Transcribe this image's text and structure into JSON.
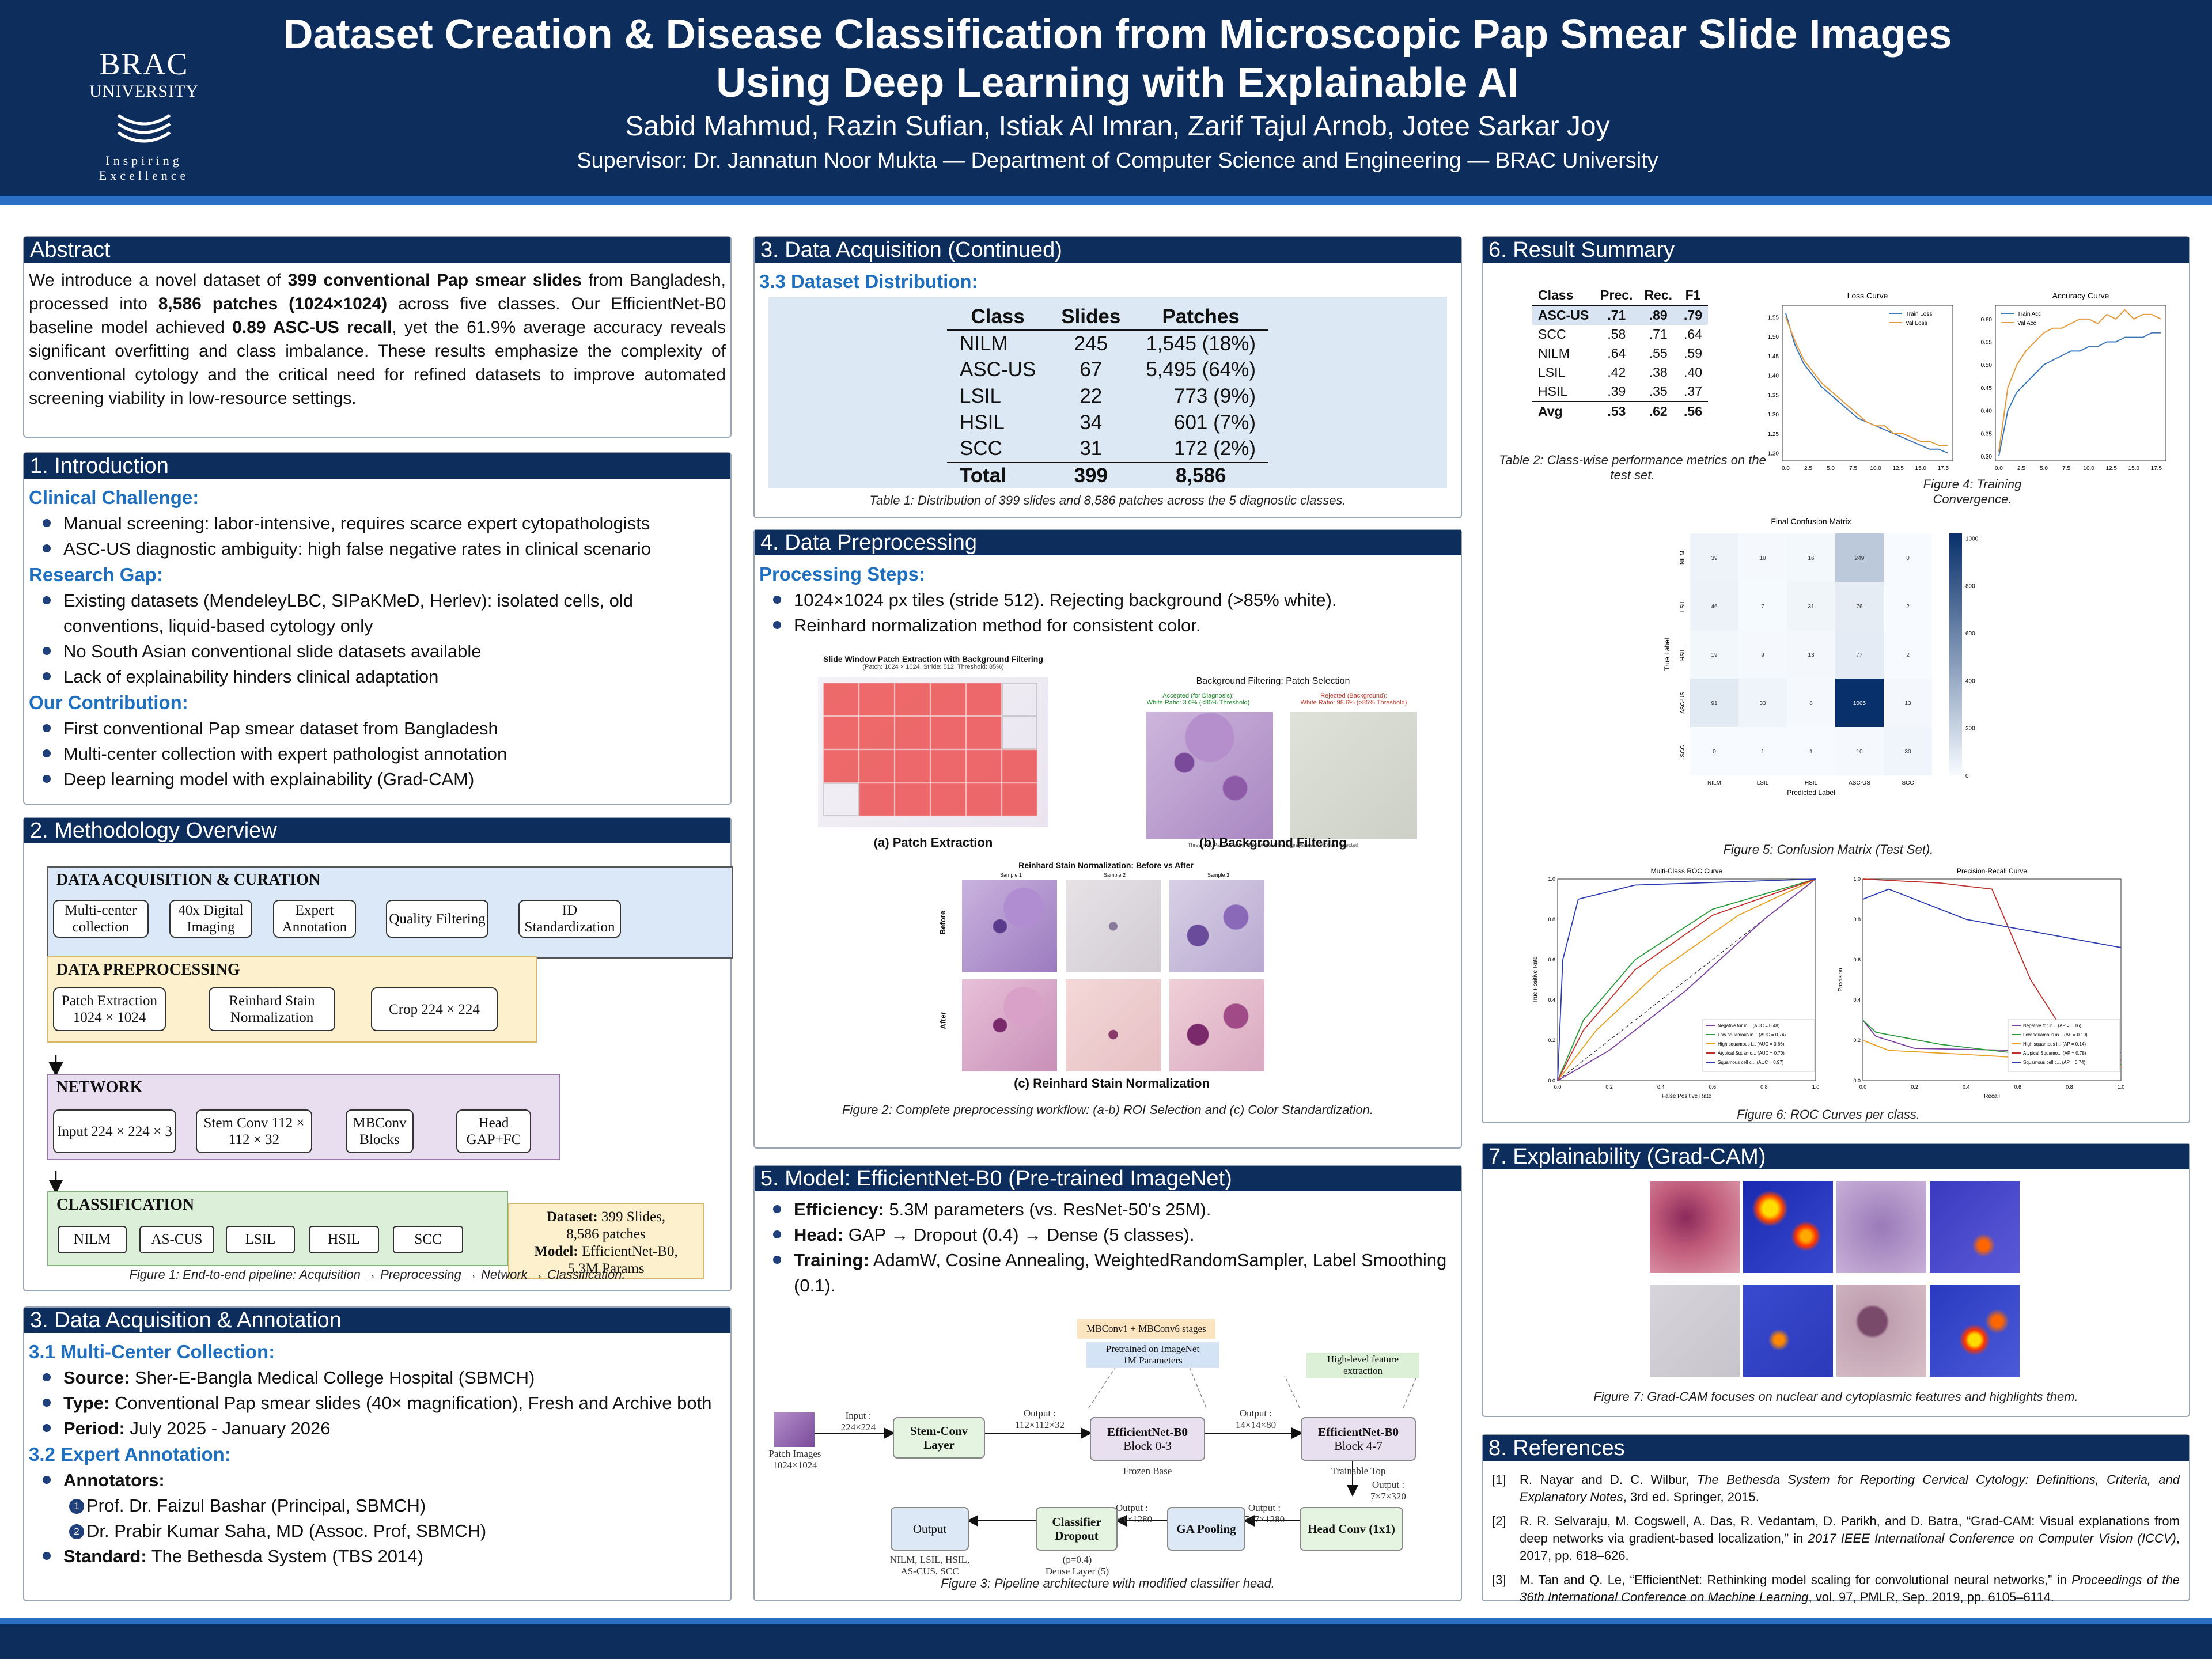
{
  "header": {
    "logo_line1": "BRAC",
    "logo_line2": "UNIVERSITY",
    "logo_tag": "Inspiring Excellence",
    "title_line1": "Dataset Creation & Disease Classification from Microscopic Pap Smear Slide Images",
    "title_line2": "Using Deep Learning with Explainable AI",
    "authors": "Sabid Mahmud, Razin Sufian, Istiak Al Imran, Zarif Tajul Arnob, Jotee Sarkar Joy",
    "supervisor": "Supervisor: Dr. Jannatun Noor Mukta — Department of Computer Science and Engineering — BRAC University"
  },
  "abstract": {
    "title": "Abstract",
    "t1": "We introduce a novel dataset of ",
    "b1": "399 conventional Pap smear slides",
    "t2": " from Bangladesh, processed into ",
    "b2": "8,586 patches (1024×1024)",
    "t3": " across five classes. Our EfficientNet-B0 baseline model achieved ",
    "b3": "0.89 ASC-US recall",
    "t4": ", yet the 61.9% average accuracy reveals significant overfitting and class imbalance. These results emphasize the complexity of conventional cytology and the critical need for refined datasets to improve automated screening viability in low-resource settings."
  },
  "intro": {
    "title": "1. Introduction",
    "h1": "Clinical Challenge:",
    "c1": "Manual screening: labor-intensive, requires scarce expert cytopathologists",
    "c2": "ASC-US diagnostic ambiguity: high false negative rates in clinical scenario",
    "h2": "Research Gap:",
    "g1": "Existing datasets (MendeleyLBC, SIPaKMeD, Herlev): isolated cells, old conventions, liquid-based cytology only",
    "g2": "No South Asian conventional slide datasets available",
    "g3": "Lack of explainability hinders clinical adaptation",
    "h3": "Our Contribution:",
    "o1": "First conventional Pap smear dataset from Bangladesh",
    "o2": "Multi-center collection with expert pathologist annotation",
    "o3": "Deep learning model with explainability (Grad-CAM)"
  },
  "method": {
    "title": "2. Methodology Overview",
    "acq": "DATA ACQUISITION & CURATION",
    "a1": "Multi-center collection",
    "a2": "40x Digital Imaging",
    "a3": "Expert Annotation",
    "a4": "Quality Filtering",
    "a5": "ID Standardization",
    "pre": "DATA PREPROCESSING",
    "p1": "Patch Extraction 1024 × 1024",
    "p2": "Reinhard Stain Normalization",
    "p3": "Crop 224 × 224",
    "net": "NETWORK",
    "n1": "Input 224 × 224 × 3",
    "n2": "Stem Conv 112 × 112 × 32",
    "n3": "MBConv Blocks",
    "n4": "Head GAP+FC",
    "cls": "CLASSIFICATION",
    "k1": "NILM",
    "k2": "AS-CUS",
    "k3": "LSIL",
    "k4": "HSIL",
    "k5": "SCC",
    "info_l1": "Dataset:",
    "info_v1": " 399 Slides,",
    "info_v1b": "8,586 patches",
    "info_l2": "Model:",
    "info_v2": " EfficientNet-B0,",
    "info_v2b": "5.3M Params",
    "caption": "Figure 1: End-to-end pipeline: Acquisition → Preprocessing → Network → Classification."
  },
  "acq": {
    "title": "3. Data Acquisition & Annotation",
    "h1": "3.1 Multi-Center Collection:",
    "l1": "Source:",
    "v1": " Sher-E-Bangla Medical College Hospital (SBMCH)",
    "l2": "Type:",
    "v2": " Conventional Pap smear slides (40× magnification), Fresh and Archive both",
    "l3": "Period:",
    "v3": " July 2025 - January 2026",
    "h2": "3.2 Expert Annotation:",
    "l4": "Annotators:",
    "a1": "Prof. Dr. Faizul Bashar (Principal, SBMCH)",
    "a2": "Dr. Prabir Kumar Saha, MD (Assoc. Prof, SBMCH)",
    "l5": "Standard:",
    "v5": " The Bethesda System (TBS 2014)"
  },
  "acq2": {
    "title": "3. Data Acquisition (Continued)",
    "h1": "3.3 Dataset Distribution:",
    "caption": "Table 1: Distribution of 399 slides and 8,586 patches across the 5 diagnostic classes.",
    "headers": [
      "Class",
      "Slides",
      "Patches"
    ],
    "rows": [
      [
        "NILM",
        "245",
        "1,545 (18%)"
      ],
      [
        "ASC-US",
        "67",
        "5,495 (64%)"
      ],
      [
        "LSIL",
        "22",
        "773 (9%)"
      ],
      [
        "HSIL",
        "34",
        "601 (7%)"
      ],
      [
        "SCC",
        "31",
        "172 (2%)"
      ]
    ],
    "total": [
      "Total",
      "399",
      "8,586"
    ]
  },
  "prep": {
    "title": "4. Data Preprocessing",
    "h1": "Processing Steps:",
    "s1": "1024×1024 px tiles (stride 512). Rejecting background (>85% white).",
    "s2": "Reinhard normalization method for consistent color.",
    "fa_title": "Slide Window Patch Extraction with Background Filtering",
    "fa_sub": "(Patch: 1024 × 1024, Stride: 512, Threshold: 85%)",
    "fa": "(a) Patch Extraction",
    "fb_title": "Background Filtering: Patch Selection",
    "fb_acc": "Accepted (for Diagnosis):",
    "fb_acc2": "White Ratio: 3.0% (<85% Threshold)",
    "fb_rej": "Rejected (Background):",
    "fb_rej2": "White Ratio: 98.6% (>85% Threshold)",
    "fb_note": "Threshold: Patches with >85% White Pixels (grayscale > 200) are rejected",
    "fb": "(b) Background Filtering",
    "fc_title": "Reinhard Stain Normalization: Before vs After",
    "fc_s1": "Sample 1",
    "fc_s2": "Sample 2",
    "fc_s3": "Sample 3",
    "fc_before": "Before",
    "fc_after": "After",
    "fc": "(c) Reinhard Stain Normalization",
    "caption": "Figure 2: Complete preprocessing workflow: (a-b) ROI Selection and (c) Color Standardization."
  },
  "model": {
    "title": "5. Model: EfficientNet-B0 (Pre-trained ImageNet)",
    "l1": "Efficiency:",
    "v1": " 5.3M parameters (vs. ResNet-50's 25M).",
    "l2": "Head:",
    "v2": " GAP → Dropout (0.4) → Dense (5 classes).",
    "l3": "Training:",
    "v3": " AdamW, Cosine Annealing, WeightedRandomSampler, Label Smoothing (0.1).",
    "mb": "MBConv1 + MBConv6 stages",
    "pre1": "Pretrained on ImageNet",
    "pre2": "1M Parameters",
    "hl1": "High-level feature",
    "hl2": "extraction",
    "patch": "Patch Images",
    "patch2": "1024×1024",
    "in_l": "Input :",
    "in_v": "224×224",
    "stem": "Stem-Conv Layer",
    "o1_l": "Output :",
    "o1_v": "112×112×32",
    "b1": "EfficientNet-B0",
    "b1s": "Block 0-3",
    "b1n": "Frozen Base",
    "o2_l": "Output :",
    "o2_v": "14×14×80",
    "b2": "EfficientNet-B0",
    "b2s": "Block 4-7",
    "b2n": "Trainable Top",
    "o3_l": "Output :",
    "o3_v": "7×7×320",
    "hc": "Head Conv (1x1)",
    "o4_l": "Output :",
    "o4_v": "7×7×1280",
    "gap": "GA Pooling",
    "o5_l": "Output :",
    "o5_v": "1×1×1280",
    "cd": "Classifier Dropout",
    "cd1": "(p=0.4)",
    "cd2": "Dense Layer (5)",
    "out": "Output",
    "out2": "NILM, LSIL, HSIL,",
    "out3": "AS-CUS, SCC",
    "caption": "Figure 3: Pipeline architecture with modified classifier head."
  },
  "results": {
    "title": "6. Result Summary",
    "headers": [
      "Class",
      "Prec.",
      "Rec.",
      "F1"
    ],
    "rows": [
      [
        "ASC-US",
        ".71",
        ".89",
        ".79"
      ],
      [
        "SCC",
        ".58",
        ".71",
        ".64"
      ],
      [
        "NILM",
        ".64",
        ".55",
        ".59"
      ],
      [
        "LSIL",
        ".42",
        ".38",
        ".40"
      ],
      [
        "HSIL",
        ".39",
        ".35",
        ".37"
      ]
    ],
    "avg": [
      "Avg",
      ".53",
      ".62",
      ".56"
    ],
    "tcap": "Table 2: Class-wise performance metrics on the test set.",
    "f4cap": "Figure 4: Training Convergence.",
    "f5cap": "Figure 5: Confusion Matrix (Test Set).",
    "f6cap": "Figure 6: ROC Curves per class."
  },
  "gradcam": {
    "title": "7. Explainability (Grad-CAM)",
    "caption": "Figure 7: Grad-CAM focuses on nuclear and cytoplasmic features and highlights them."
  },
  "refs": {
    "title": "8. References",
    "r1a": "R. Nayar and D. C. Wilbur, ",
    "r1b": "The Bethesda System for Reporting Cervical Cytology: Definitions, Criteria, and Explanatory Notes",
    "r1c": ", 3rd ed. Springer, 2015.",
    "r2a": "R. R. Selvaraju, M. Cogswell, A. Das, R. Vedantam, D. Parikh, and D. Batra, “Grad-CAM: Visual explanations from deep networks via gradient-based localization,” in ",
    "r2b": "2017 IEEE International Conference on Computer Vision (ICCV)",
    "r2c": ", 2017, pp. 618–626.",
    "r3a": "M. Tan and Q. Le, “EfficientNet: Rethinking model scaling for convolutional neural networks,” in ",
    "r3b": "Proceedings of the 36th International Conference on Machine Learning",
    "r3c": ", vol. 97, PMLR, Sep. 2019, pp. 6105–6114."
  },
  "chart_data": [
    {
      "type": "line",
      "title": "Loss Curve",
      "series": [
        {
          "name": "Train Loss",
          "values": [
            1.56,
            1.48,
            1.43,
            1.4,
            1.37,
            1.35,
            1.33,
            1.31,
            1.29,
            1.28,
            1.27,
            1.26,
            1.25,
            1.24,
            1.23,
            1.22,
            1.21,
            1.21,
            1.2
          ]
        },
        {
          "name": "Val Loss",
          "values": [
            1.55,
            1.49,
            1.44,
            1.41,
            1.38,
            1.36,
            1.34,
            1.32,
            1.3,
            1.28,
            1.27,
            1.27,
            1.25,
            1.25,
            1.24,
            1.23,
            1.23,
            1.22,
            1.22
          ]
        }
      ],
      "x": [
        0,
        1,
        2,
        3,
        4,
        5,
        6,
        7,
        8,
        9,
        10,
        11,
        12,
        13,
        14,
        15,
        16,
        17,
        18
      ],
      "xticks": [
        "0.0",
        "2.5",
        "5.0",
        "7.5",
        "10.0",
        "12.5",
        "15.0",
        "17.5"
      ],
      "yticks": [
        "1.20",
        "1.25",
        "1.30",
        "1.35",
        "1.40",
        "1.45",
        "1.50",
        "1.55"
      ],
      "ylim": [
        1.18,
        1.58
      ],
      "legend": "top-right"
    },
    {
      "type": "line",
      "title": "Accuracy Curve",
      "series": [
        {
          "name": "Train Acc",
          "values": [
            0.3,
            0.4,
            0.44,
            0.46,
            0.48,
            0.5,
            0.51,
            0.52,
            0.53,
            0.53,
            0.54,
            0.54,
            0.55,
            0.55,
            0.56,
            0.56,
            0.56,
            0.57,
            0.57
          ]
        },
        {
          "name": "Val Acc",
          "values": [
            0.31,
            0.45,
            0.5,
            0.53,
            0.55,
            0.57,
            0.58,
            0.58,
            0.59,
            0.6,
            0.6,
            0.59,
            0.61,
            0.6,
            0.62,
            0.6,
            0.61,
            0.61,
            0.6
          ]
        }
      ],
      "x": [
        0,
        1,
        2,
        3,
        4,
        5,
        6,
        7,
        8,
        9,
        10,
        11,
        12,
        13,
        14,
        15,
        16,
        17,
        18
      ],
      "xticks": [
        "0.0",
        "2.5",
        "5.0",
        "7.5",
        "10.0",
        "12.5",
        "15.0",
        "17.5"
      ],
      "yticks": [
        "0.30",
        "0.35",
        "0.40",
        "0.45",
        "0.50",
        "0.55",
        "0.60"
      ],
      "ylim": [
        0.29,
        0.63
      ],
      "legend": "top-left"
    },
    {
      "type": "heatmap",
      "title": "Final Confusion Matrix",
      "xlabel": "Predicted Label",
      "ylabel": "True Label",
      "labels": [
        "NILM",
        "LSIL",
        "HSIL",
        "ASC-US",
        "SCC"
      ],
      "values": [
        [
          39,
          10,
          16,
          249,
          0
        ],
        [
          46,
          7,
          31,
          76,
          2
        ],
        [
          19,
          9,
          13,
          77,
          2
        ],
        [
          91,
          33,
          8,
          1005,
          13
        ],
        [
          0,
          1,
          1,
          10,
          30
        ]
      ],
      "colorbar": [
        "0",
        "200",
        "400",
        "600",
        "800",
        "1000"
      ]
    },
    {
      "type": "line",
      "title": "Multi-Class ROC Curve",
      "xlabel": "False Positive Rate",
      "ylabel": "True Positive Rate",
      "legend": [
        "Negative for in... (AUC = 0.48)",
        "Low squamous in... (AUC = 0.74)",
        "High squamous i... (AUC = 0.66)",
        "Atypical Squamo... (AUC = 0.70)",
        "Squamous cell c... (AUC = 0.97)"
      ],
      "ticks": [
        "0.0",
        "0.2",
        "0.4",
        "0.6",
        "0.8",
        "1.0"
      ]
    },
    {
      "type": "line",
      "title": "Precision-Recall Curve",
      "xlabel": "Recall",
      "ylabel": "Precision",
      "legend": [
        "Negative for in... (AP = 0.16)",
        "Low squamous in... (AP = 0.19)",
        "High squamous i... (AP = 0.14)",
        "Atypical Squamo... (AP = 0.78)",
        "Squamous cell c... (AP = 0.74)"
      ],
      "ticks": [
        "0.0",
        "0.2",
        "0.4",
        "0.6",
        "0.8",
        "1.0"
      ]
    }
  ],
  "colors": {
    "navy": "#0d2d5c",
    "accent": "#1f6fbf",
    "acq_bg": "#dbe8f8",
    "pre_bg": "#fdf0cc",
    "net_bg": "#e9def0",
    "cls_bg": "#dcefd9"
  }
}
